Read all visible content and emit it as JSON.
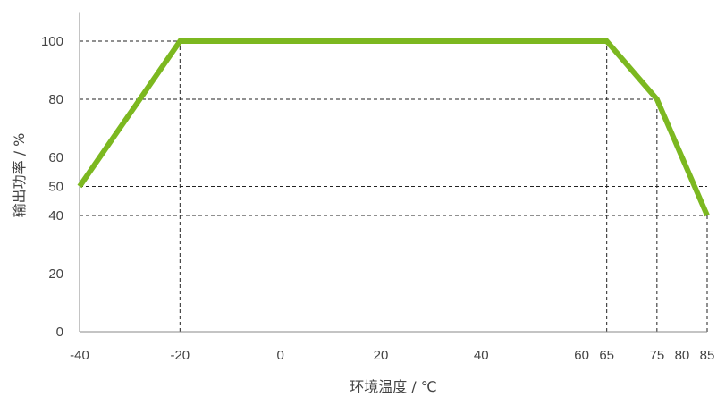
{
  "chart_data": {
    "type": "line",
    "title": "",
    "xlabel": "环境温度 / ℃",
    "ylabel": "输出功率 / %",
    "xlim": [
      -40,
      85
    ],
    "ylim": [
      0,
      110
    ],
    "x_ticks": [
      -40,
      -20,
      0,
      20,
      40,
      60,
      65,
      75,
      80,
      85
    ],
    "y_ticks": [
      0,
      20,
      40,
      50,
      60,
      80,
      100
    ],
    "series": [
      {
        "x": [
          -40,
          -20,
          65,
          75,
          85
        ],
        "y": [
          50,
          100,
          100,
          80,
          40
        ],
        "color": "#7cb820"
      }
    ],
    "reference_lines": {
      "horizontal": [
        {
          "y": 100,
          "x_from": -40,
          "x_to": -20
        },
        {
          "y": 80,
          "x_from": -40,
          "x_to": 75
        },
        {
          "y": 50,
          "x_from": -40,
          "x_to": 85
        },
        {
          "y": 40,
          "x_from": -40,
          "x_to": 85
        }
      ],
      "vertical": [
        {
          "x": -20,
          "y_from": 0,
          "y_to": 100
        },
        {
          "x": 65,
          "y_from": 0,
          "y_to": 100
        },
        {
          "x": 75,
          "y_from": 0,
          "y_to": 80
        },
        {
          "x": 85,
          "y_from": 0,
          "y_to": 40
        }
      ]
    },
    "grid": false,
    "legend": "none",
    "colors": {
      "line": "#7cb820",
      "axis": "#888888",
      "reference": "#222222",
      "text": "#444444"
    }
  }
}
